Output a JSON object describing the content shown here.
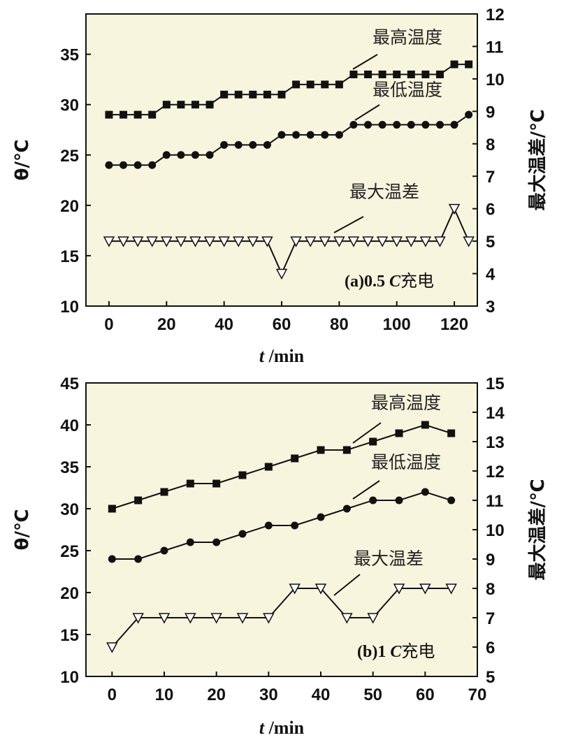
{
  "chart_data": [
    {
      "type": "line",
      "condition_label": "(a)0.5 C充电",
      "condition_prefix": "(a)0.5 ",
      "condition_italic": "C",
      "condition_suffix": "充电",
      "xlabel_italic": "t",
      "xlabel_rest": " /min",
      "ylabel_left": "θ/℃",
      "ylabel_right": "最大温差/℃",
      "xlim": [
        -8,
        128
      ],
      "ylim_left": [
        10,
        39
      ],
      "ylim_right": [
        3,
        12
      ],
      "x_ticks": [
        0,
        20,
        40,
        60,
        80,
        100,
        120
      ],
      "y_left_ticks": [
        10,
        15,
        20,
        25,
        30,
        35
      ],
      "y_right_ticks": [
        3,
        4,
        5,
        6,
        7,
        8,
        9,
        10,
        11,
        12
      ],
      "x": [
        0,
        5,
        10,
        15,
        20,
        25,
        30,
        35,
        40,
        45,
        50,
        55,
        60,
        65,
        70,
        75,
        80,
        85,
        90,
        95,
        100,
        105,
        110,
        115,
        120,
        125
      ],
      "series": [
        {
          "name": "最高温度",
          "axis": "left",
          "marker": "square",
          "values": [
            29,
            29,
            29,
            29,
            30,
            30,
            30,
            30,
            31,
            31,
            31,
            31,
            31,
            32,
            32,
            32,
            32,
            33,
            33,
            33,
            33,
            33,
            33,
            33,
            34,
            34
          ]
        },
        {
          "name": "最低温度",
          "axis": "left",
          "marker": "circle",
          "values": [
            24,
            24,
            24,
            24,
            25,
            25,
            25,
            25,
            26,
            26,
            26,
            26,
            27,
            27,
            27,
            27,
            27,
            28,
            28,
            28,
            28,
            28,
            28,
            28,
            28,
            29
          ]
        },
        {
          "name": "最大温差",
          "axis": "right",
          "marker": "triangle-down",
          "values": [
            5,
            5,
            5,
            5,
            5,
            5,
            5,
            5,
            5,
            5,
            5,
            5,
            4,
            5,
            5,
            5,
            5,
            5,
            5,
            5,
            5,
            5,
            5,
            5,
            6,
            5
          ]
        }
      ]
    },
    {
      "type": "line",
      "condition_label": "(b)1 C充电",
      "condition_prefix": "(b)1 ",
      "condition_italic": "C",
      "condition_suffix": "充电",
      "xlabel_italic": "t",
      "xlabel_rest": " /min",
      "ylabel_left": "θ/℃",
      "ylabel_right": "最大温差/℃",
      "xlim": [
        -5,
        70
      ],
      "ylim_left": [
        10,
        45
      ],
      "ylim_right": [
        5,
        15
      ],
      "x_ticks": [
        0,
        10,
        20,
        30,
        40,
        50,
        60,
        70
      ],
      "y_left_ticks": [
        10,
        15,
        20,
        25,
        30,
        35,
        40,
        45
      ],
      "y_right_ticks": [
        5,
        6,
        7,
        8,
        9,
        10,
        11,
        12,
        13,
        14,
        15
      ],
      "x": [
        0,
        5,
        10,
        15,
        20,
        25,
        30,
        35,
        40,
        45,
        50,
        55,
        60,
        65
      ],
      "series": [
        {
          "name": "最高温度",
          "axis": "left",
          "marker": "square",
          "values": [
            30,
            31,
            32,
            33,
            33,
            34,
            35,
            36,
            37,
            37,
            38,
            39,
            40,
            39
          ]
        },
        {
          "name": "最低温度",
          "axis": "left",
          "marker": "circle",
          "values": [
            24,
            24,
            25,
            26,
            26,
            27,
            28,
            28,
            29,
            30,
            31,
            31,
            32,
            31
          ]
        },
        {
          "name": "最大温差",
          "axis": "right",
          "marker": "triangle-down",
          "values": [
            6,
            7,
            7,
            7,
            7,
            7,
            7,
            8,
            8,
            7,
            7,
            8,
            8,
            8
          ]
        }
      ]
    }
  ]
}
